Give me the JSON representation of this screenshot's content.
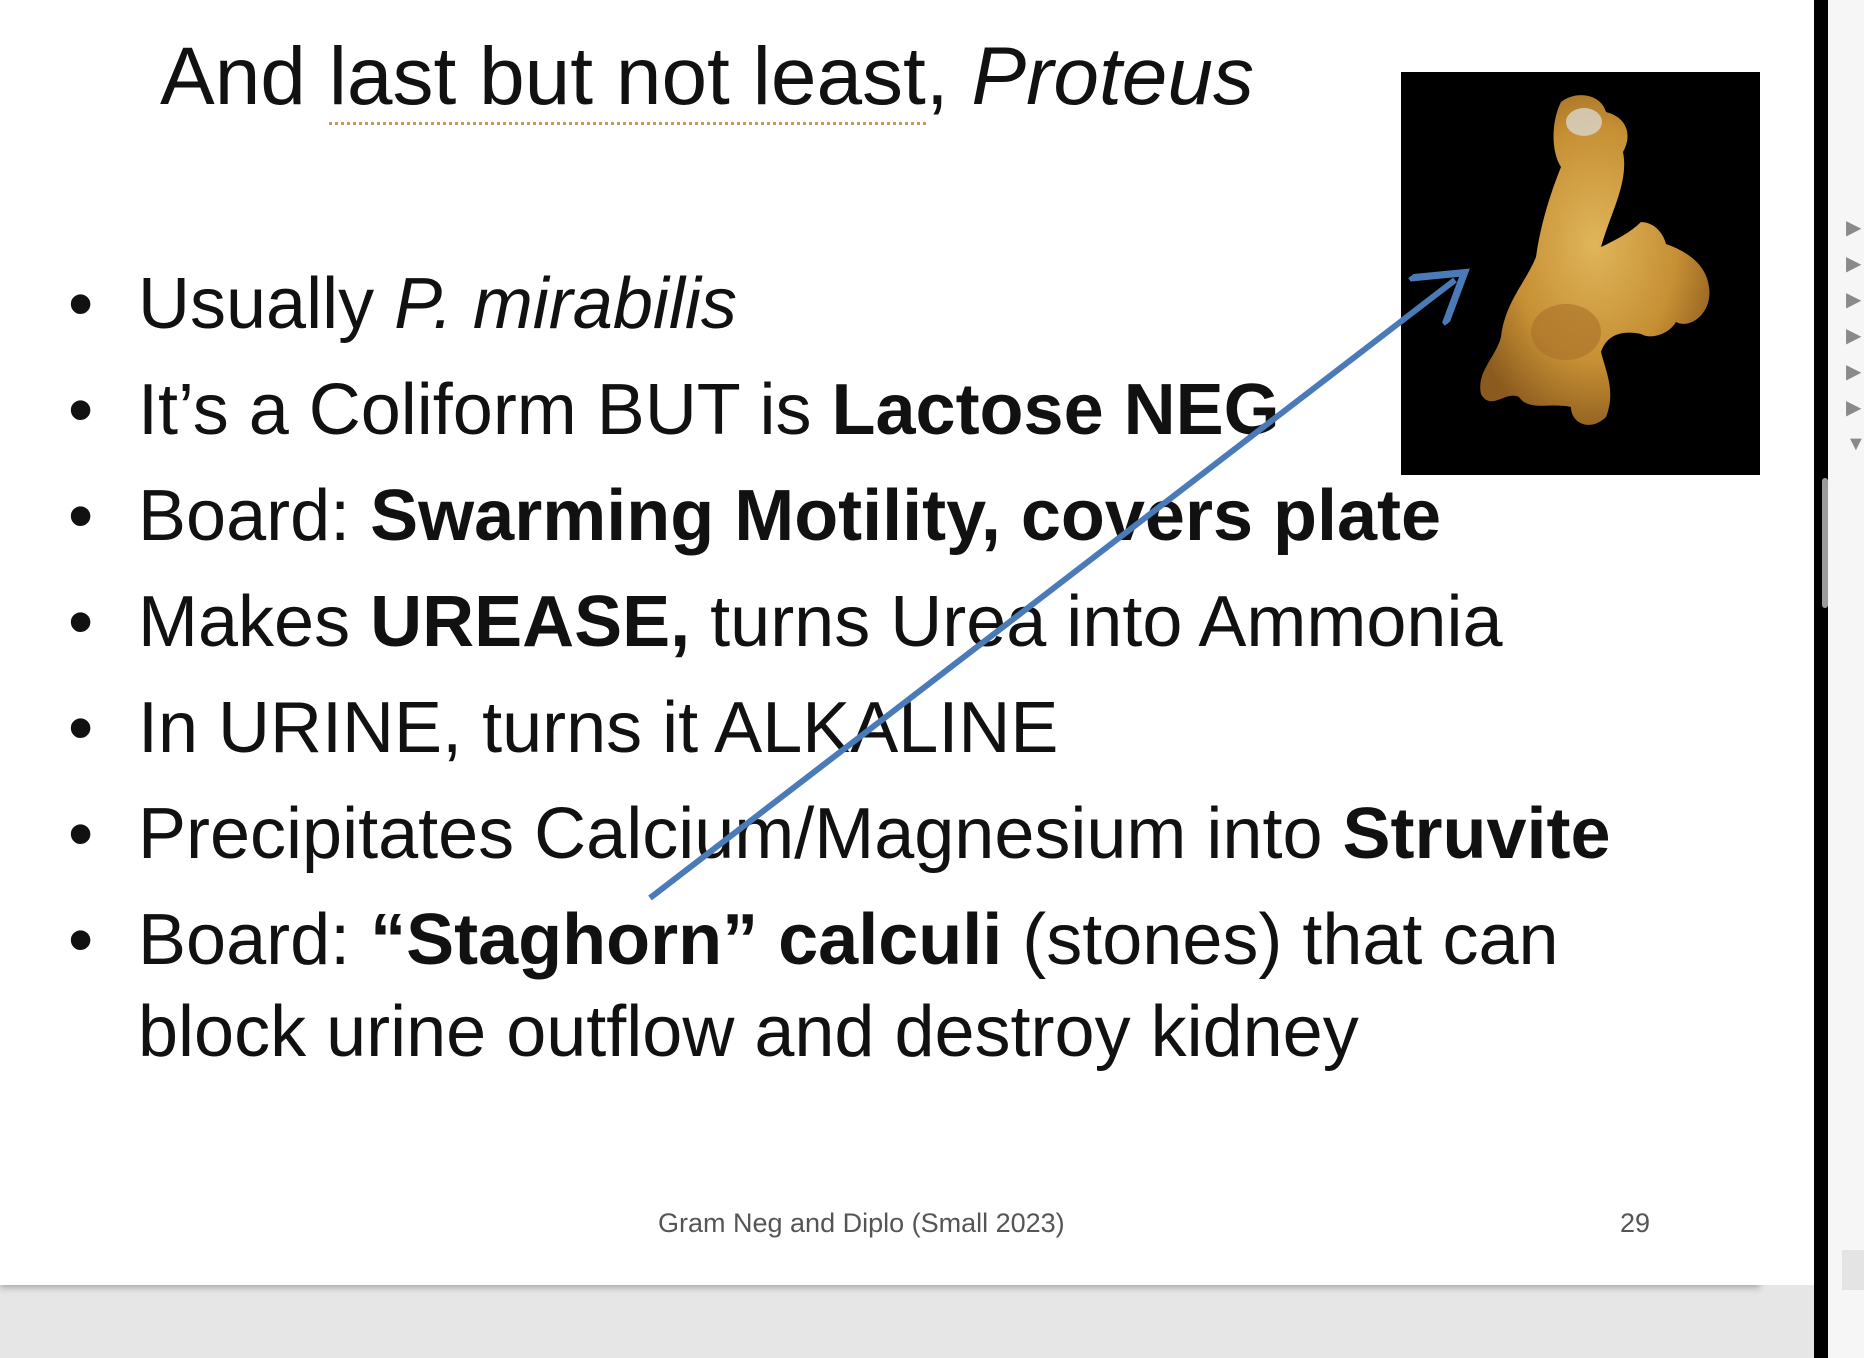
{
  "slide": {
    "title_plain": "And ",
    "title_underlined": "last but not least",
    "title_comma": ", ",
    "title_italic": "Proteus",
    "bullets": [
      {
        "parts": [
          {
            "t": "Usually ",
            "style": ""
          },
          {
            "t": "P. mirabilis",
            "style": "italic"
          }
        ]
      },
      {
        "parts": [
          {
            "t": "It’s a Coliform BUT is ",
            "style": ""
          },
          {
            "t": "Lactose NEG",
            "style": "bold"
          }
        ]
      },
      {
        "parts": [
          {
            "t": "Board: ",
            "style": ""
          },
          {
            "t": "Swarming Motility, covers plate",
            "style": "bold"
          }
        ]
      },
      {
        "parts": [
          {
            "t": "Makes ",
            "style": ""
          },
          {
            "t": "UREASE,",
            "style": "bold"
          },
          {
            "t": " turns Urea into Ammonia",
            "style": ""
          }
        ]
      },
      {
        "parts": [
          {
            "t": "In URINE, turns it ALKALINE",
            "style": ""
          }
        ]
      },
      {
        "parts": [
          {
            "t": "Precipitates Calcium/Magnesium into ",
            "style": ""
          },
          {
            "t": "Struvite",
            "style": "bold"
          }
        ]
      },
      {
        "parts": [
          {
            "t": "Board: ",
            "style": ""
          },
          {
            "t": "“Staghorn” calculi",
            "style": "bold"
          },
          {
            "t": " (stones) that can block urine outflow and destroy kidney",
            "style": ""
          }
        ]
      }
    ],
    "bullet_glyph": "•",
    "footer": "Gram Neg and Diplo (Small 2023)",
    "page_number": "29",
    "arrow_color": "#4a7ab8"
  },
  "side_triangles": [
    "▶",
    "▶",
    "▶",
    "▶",
    "▶",
    "▶",
    "▼"
  ]
}
